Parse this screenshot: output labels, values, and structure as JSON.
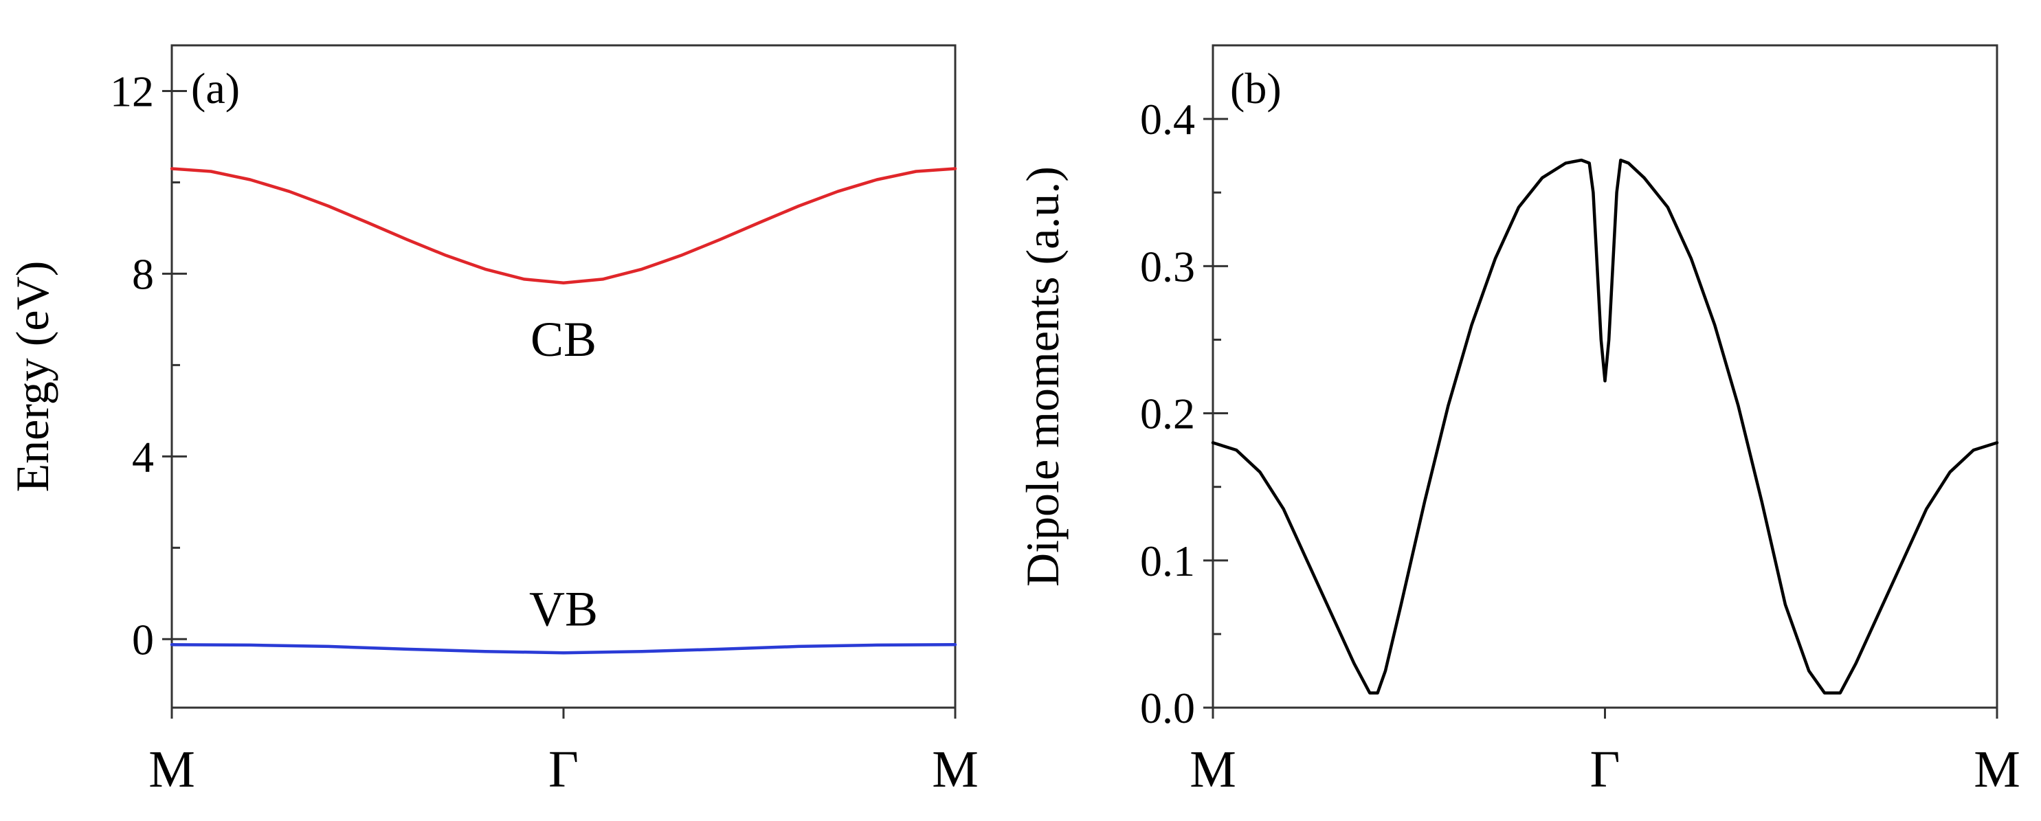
{
  "chart_data": [
    {
      "panel": "(a)",
      "type": "line",
      "xlabel": "",
      "ylabel": "Energy (eV)",
      "ylim": [
        -1.5,
        13
      ],
      "yticks": [
        0,
        4,
        8,
        12
      ],
      "ytick_labels": [
        "0",
        "4",
        "8",
        "12"
      ],
      "xlim": [
        0,
        1
      ],
      "xticks": [
        0,
        0.5,
        1
      ],
      "xtick_labels": [
        "M",
        "Γ",
        "M"
      ],
      "series": [
        {
          "name": "CB",
          "color": "#e0262a",
          "x": [
            0,
            0.05,
            0.1,
            0.15,
            0.2,
            0.25,
            0.3,
            0.35,
            0.4,
            0.45,
            0.5,
            0.55,
            0.6,
            0.65,
            0.7,
            0.75,
            0.8,
            0.85,
            0.9,
            0.95,
            1.0
          ],
          "y": [
            10.3,
            10.24,
            10.06,
            9.8,
            9.48,
            9.12,
            8.75,
            8.4,
            8.1,
            7.88,
            7.8,
            7.88,
            8.1,
            8.4,
            8.75,
            9.12,
            9.48,
            9.8,
            10.06,
            10.24,
            10.3
          ]
        },
        {
          "name": "VB",
          "color": "#2a3bd6",
          "x": [
            0,
            0.1,
            0.2,
            0.3,
            0.4,
            0.5,
            0.6,
            0.7,
            0.8,
            0.9,
            1.0
          ],
          "y": [
            -0.12,
            -0.13,
            -0.16,
            -0.22,
            -0.27,
            -0.3,
            -0.27,
            -0.22,
            -0.16,
            -0.13,
            -0.12
          ]
        }
      ],
      "annotations": [
        "CB",
        "VB"
      ]
    },
    {
      "panel": "(b)",
      "type": "line",
      "xlabel": "",
      "ylabel": "Dipole moments (a.u.)",
      "ylim": [
        0,
        0.45
      ],
      "yticks": [
        0,
        0.1,
        0.2,
        0.3,
        0.4
      ],
      "ytick_labels": [
        "0.0",
        "0.1",
        "0.2",
        "0.3",
        "0.4"
      ],
      "xlim": [
        0,
        1
      ],
      "xticks": [
        0,
        0.5,
        1
      ],
      "xtick_labels": [
        "M",
        "Γ",
        "M"
      ],
      "series": [
        {
          "name": "dipole",
          "color": "#000000",
          "x": [
            0,
            0.03,
            0.06,
            0.09,
            0.12,
            0.15,
            0.18,
            0.2,
            0.21,
            0.22,
            0.24,
            0.27,
            0.3,
            0.33,
            0.36,
            0.39,
            0.42,
            0.45,
            0.47,
            0.48,
            0.485,
            0.49,
            0.495,
            0.5,
            0.505,
            0.51,
            0.515,
            0.52,
            0.53,
            0.55,
            0.58,
            0.61,
            0.64,
            0.67,
            0.7,
            0.73,
            0.76,
            0.78,
            0.79,
            0.8,
            0.82,
            0.85,
            0.88,
            0.91,
            0.94,
            0.97,
            1.0
          ],
          "y": [
            0.18,
            0.175,
            0.16,
            0.135,
            0.1,
            0.065,
            0.03,
            0.01,
            0.01,
            0.025,
            0.07,
            0.14,
            0.205,
            0.26,
            0.305,
            0.34,
            0.36,
            0.37,
            0.372,
            0.37,
            0.35,
            0.3,
            0.25,
            0.222,
            0.25,
            0.3,
            0.35,
            0.372,
            0.37,
            0.36,
            0.34,
            0.305,
            0.26,
            0.205,
            0.14,
            0.07,
            0.025,
            0.01,
            0.01,
            0.01,
            0.03,
            0.065,
            0.1,
            0.135,
            0.16,
            0.175,
            0.18
          ]
        }
      ],
      "annotations": []
    }
  ]
}
